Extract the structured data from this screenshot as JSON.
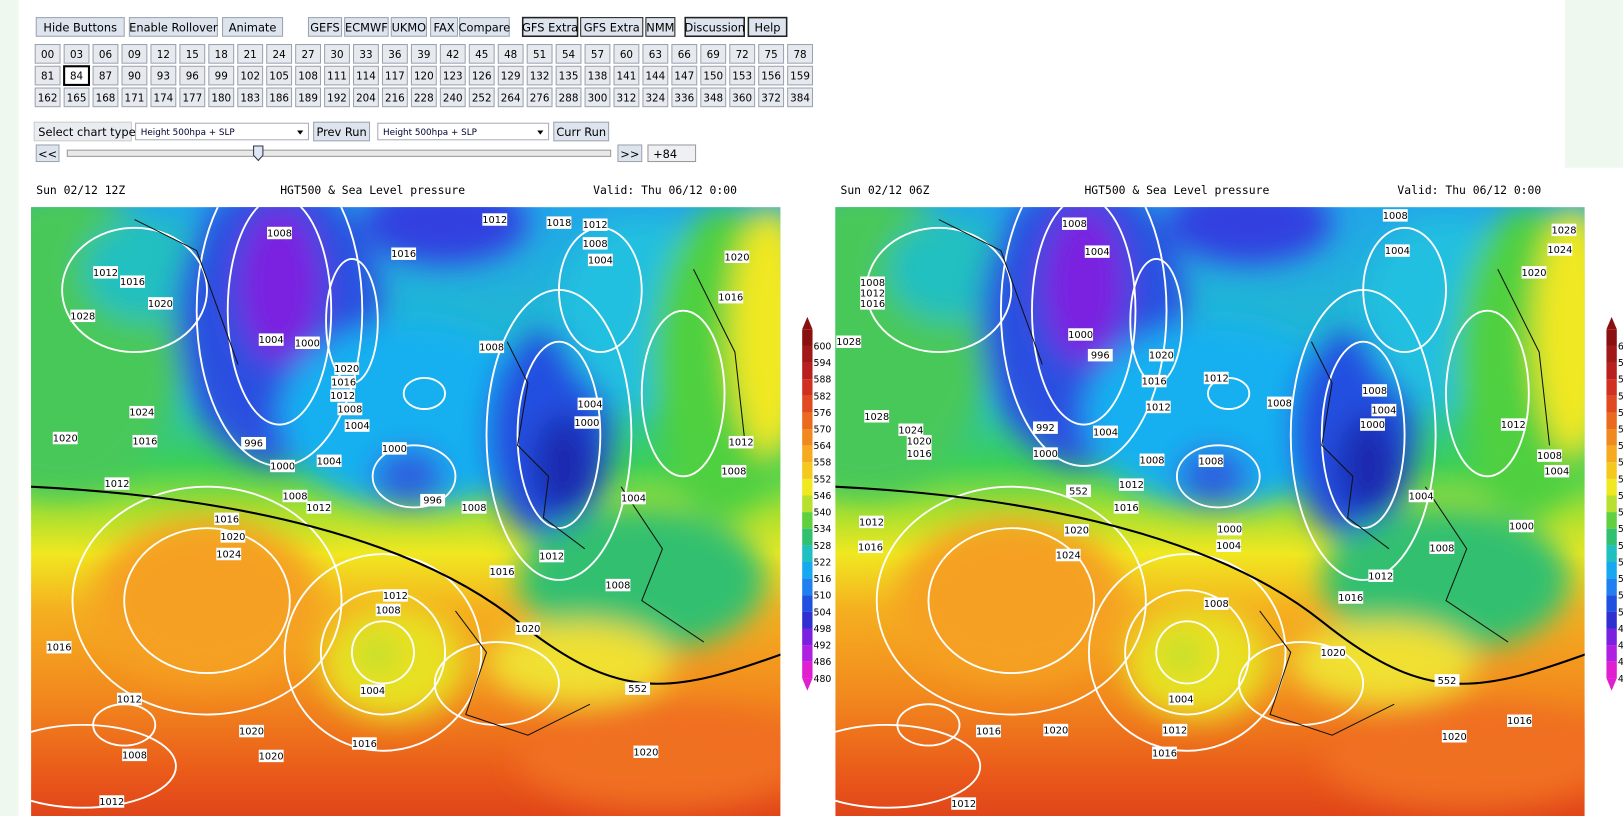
{
  "toolbar": {
    "buttons": [
      "Hide Buttons",
      "Enable Rollover",
      "Animate",
      "GEFS",
      "ECMWF",
      "UKMO",
      "FAX",
      "Compare",
      "GFS Extra",
      "GFS Extra",
      "NMM",
      "Discussion",
      "Help"
    ]
  },
  "hours": {
    "rows": [
      [
        "00",
        "03",
        "06",
        "09",
        "12",
        "15",
        "18",
        "21",
        "24",
        "27",
        "30",
        "33",
        "36",
        "39",
        "42",
        "45",
        "48",
        "51",
        "54",
        "57",
        "60",
        "63",
        "66",
        "69",
        "72",
        "75",
        "78"
      ],
      [
        "81",
        "84",
        "87",
        "90",
        "93",
        "96",
        "99",
        "102",
        "105",
        "108",
        "111",
        "114",
        "117",
        "120",
        "123",
        "126",
        "129",
        "132",
        "135",
        "138",
        "141",
        "144",
        "147",
        "150",
        "153",
        "156",
        "159"
      ],
      [
        "162",
        "165",
        "168",
        "171",
        "174",
        "177",
        "180",
        "183",
        "186",
        "189",
        "192",
        "204",
        "216",
        "228",
        "240",
        "252",
        "264",
        "276",
        "288",
        "300",
        "312",
        "324",
        "336",
        "348",
        "360",
        "372",
        "384"
      ]
    ]
  },
  "controls": {
    "chart_type_label": "Select chart type:",
    "chart_type_left": "Height 500hpa + SLP",
    "prev_run": "Prev Run",
    "chart_type_right": "Height 500hpa + SLP",
    "curr_run": "Curr Run",
    "back": "<<",
    "forward": ">>",
    "offset": "+84"
  },
  "maps": [
    {
      "run": "Sun 02/12 12Z",
      "title": "HGT500 & Sea Level pressure",
      "valid": "Valid: Thu 06/12 0:00",
      "isobar_labels": [
        "1008",
        "1012",
        "1016",
        "1018",
        "1012",
        "1008",
        "1004",
        "1020",
        "1012",
        "1016",
        "1020",
        "1016",
        "1028",
        "1004",
        "1000",
        "1020",
        "1016",
        "1012",
        "1008",
        "1004",
        "1008",
        "1004",
        "1000",
        "1024",
        "1016",
        "1020",
        "996",
        "1000",
        "1004",
        "1000",
        "1012",
        "1008",
        "1012",
        "1008",
        "1012",
        "996",
        "1008",
        "1004",
        "1016",
        "1020",
        "1024",
        "1012",
        "1016",
        "1008",
        "1012",
        "1008",
        "1020",
        "1016",
        "552",
        "1004",
        "1012",
        "1020",
        "1016",
        "1008",
        "1020",
        "1020",
        "1012"
      ]
    },
    {
      "run": "Sun 02/12 06Z",
      "title": "HGT500 & Sea Level pressure",
      "valid": "Valid: Thu 06/12 0:00",
      "isobar_labels": [
        "1008",
        "1004",
        "1008",
        "1028",
        "1024",
        "1004",
        "1020",
        "1008",
        "1012",
        "1016",
        "1028",
        "1000",
        "996",
        "1020",
        "1016",
        "1012",
        "1012",
        "1008",
        "1008",
        "1004",
        "1000",
        "1028",
        "1024",
        "1020",
        "1016",
        "992",
        "1004",
        "1000",
        "1012",
        "1008",
        "1004",
        "1008",
        "1008",
        "1012",
        "552",
        "1016",
        "1012",
        "1004",
        "1000",
        "1020",
        "1000",
        "1004",
        "1008",
        "1016",
        "1024",
        "1012",
        "1016",
        "1008",
        "1020",
        "552",
        "1004",
        "1016",
        "1012",
        "1016",
        "1020",
        "1020",
        "1016",
        "1012"
      ]
    }
  ],
  "colorbar_labels": [
    "600",
    "594",
    "588",
    "582",
    "576",
    "570",
    "564",
    "558",
    "552",
    "546",
    "540",
    "534",
    "528",
    "522",
    "516",
    "510",
    "504",
    "498",
    "492",
    "486",
    "480"
  ]
}
